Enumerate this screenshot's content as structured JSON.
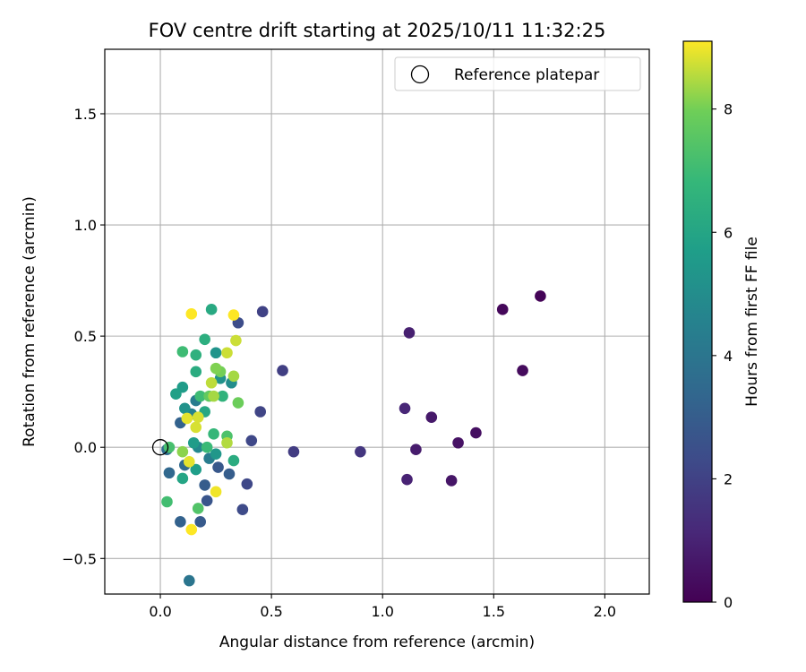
{
  "chart_data": {
    "type": "scatter",
    "title": "FOV centre drift starting at 2025/10/11 11:32:25",
    "xlabel": "Angular distance from reference (arcmin)",
    "ylabel": "Rotation from reference (arcmin)",
    "xlim": [
      -0.25,
      2.2
    ],
    "ylim": [
      -0.66,
      1.79
    ],
    "xticks": [
      0.0,
      0.5,
      1.0,
      1.5,
      2.0
    ],
    "xtick_labels": [
      "0.0",
      "0.5",
      "1.0",
      "1.5",
      "2.0"
    ],
    "yticks": [
      -0.5,
      0.0,
      0.5,
      1.0,
      1.5
    ],
    "ytick_labels": [
      "−0.5",
      "0.0",
      "0.5",
      "1.0",
      "1.5"
    ],
    "grid": true,
    "legend": {
      "position": "top-right",
      "entries": [
        {
          "label": "Reference platepar",
          "marker": "open-circle"
        }
      ]
    },
    "reference_point": {
      "x": 0.0,
      "y": 0.0
    },
    "colorbar": {
      "label": "Hours from first FF file",
      "colormap": "viridis",
      "range": [
        0,
        9.1
      ],
      "ticks": [
        0,
        2,
        4,
        6,
        8
      ],
      "tick_labels": [
        "0",
        "2",
        "4",
        "6",
        "8"
      ]
    },
    "series": [
      {
        "name": "FOV centre",
        "points": [
          {
            "x": 1.71,
            "y": 0.68,
            "h": 0.1
          },
          {
            "x": 1.54,
            "y": 0.62,
            "h": 0.2
          },
          {
            "x": 1.63,
            "y": 0.345,
            "h": 0.3
          },
          {
            "x": 1.42,
            "y": 0.065,
            "h": 0.4
          },
          {
            "x": 1.34,
            "y": 0.02,
            "h": 0.5
          },
          {
            "x": 1.31,
            "y": -0.15,
            "h": 0.6
          },
          {
            "x": 1.22,
            "y": 0.135,
            "h": 0.7
          },
          {
            "x": 1.15,
            "y": -0.01,
            "h": 0.8
          },
          {
            "x": 1.12,
            "y": 0.515,
            "h": 0.9
          },
          {
            "x": 1.11,
            "y": -0.145,
            "h": 1.0
          },
          {
            "x": 1.1,
            "y": 0.175,
            "h": 1.1
          },
          {
            "x": 0.9,
            "y": -0.02,
            "h": 1.6
          },
          {
            "x": 0.6,
            "y": -0.02,
            "h": 1.8
          },
          {
            "x": 0.55,
            "y": 0.345,
            "h": 1.9
          },
          {
            "x": 0.46,
            "y": 0.61,
            "h": 2.0
          },
          {
            "x": 0.45,
            "y": 0.16,
            "h": 2.1
          },
          {
            "x": 0.41,
            "y": 0.03,
            "h": 2.2
          },
          {
            "x": 0.39,
            "y": -0.165,
            "h": 2.2
          },
          {
            "x": 0.37,
            "y": -0.28,
            "h": 2.3
          },
          {
            "x": 0.35,
            "y": 0.56,
            "h": 2.4
          },
          {
            "x": 0.26,
            "y": -0.09,
            "h": 2.8
          },
          {
            "x": 0.31,
            "y": -0.12,
            "h": 3.0
          },
          {
            "x": 0.2,
            "y": -0.17,
            "h": 3.0
          },
          {
            "x": 0.18,
            "y": -0.335,
            "h": 2.9
          },
          {
            "x": 0.21,
            "y": -0.24,
            "h": 2.7
          },
          {
            "x": 0.09,
            "y": -0.335,
            "h": 3.2
          },
          {
            "x": 0.04,
            "y": -0.115,
            "h": 3.4
          },
          {
            "x": 0.03,
            "y": -0.01,
            "h": 3.6
          },
          {
            "x": 0.09,
            "y": 0.11,
            "h": 3.2
          },
          {
            "x": 0.11,
            "y": -0.08,
            "h": 3.5
          },
          {
            "x": 0.13,
            "y": -0.6,
            "h": 4.0
          },
          {
            "x": 0.22,
            "y": -0.05,
            "h": 4.3
          },
          {
            "x": 0.17,
            "y": 0.0,
            "h": 4.8
          },
          {
            "x": 0.14,
            "y": 0.15,
            "h": 4.5
          },
          {
            "x": 0.16,
            "y": 0.21,
            "h": 4.3
          },
          {
            "x": 0.32,
            "y": 0.29,
            "h": 5.0
          },
          {
            "x": 0.27,
            "y": 0.31,
            "h": 5.2
          },
          {
            "x": 0.25,
            "y": 0.425,
            "h": 5.3
          },
          {
            "x": 0.15,
            "y": 0.02,
            "h": 5.6
          },
          {
            "x": 0.25,
            "y": -0.03,
            "h": 5.4
          },
          {
            "x": 0.11,
            "y": 0.175,
            "h": 5.2
          },
          {
            "x": 0.1,
            "y": 0.27,
            "h": 5.6
          },
          {
            "x": 0.07,
            "y": 0.24,
            "h": 5.8
          },
          {
            "x": 0.1,
            "y": -0.14,
            "h": 6.0
          },
          {
            "x": 0.16,
            "y": -0.1,
            "h": 5.7
          },
          {
            "x": 0.2,
            "y": 0.16,
            "h": 6.1
          },
          {
            "x": 0.23,
            "y": 0.62,
            "h": 6.2
          },
          {
            "x": 0.2,
            "y": 0.485,
            "h": 6.4
          },
          {
            "x": 0.16,
            "y": 0.34,
            "h": 6.3
          },
          {
            "x": 0.16,
            "y": 0.415,
            "h": 6.5
          },
          {
            "x": 0.28,
            "y": 0.23,
            "h": 6.6
          },
          {
            "x": 0.33,
            "y": -0.06,
            "h": 6.3
          },
          {
            "x": 0.24,
            "y": 0.06,
            "h": 6.8
          },
          {
            "x": 0.21,
            "y": 0.0,
            "h": 6.9
          },
          {
            "x": 0.18,
            "y": 0.23,
            "h": 7.0
          },
          {
            "x": 0.1,
            "y": 0.43,
            "h": 7.0
          },
          {
            "x": 0.04,
            "y": 0.0,
            "h": 7.2
          },
          {
            "x": 0.03,
            "y": -0.245,
            "h": 7.1
          },
          {
            "x": 0.3,
            "y": 0.05,
            "h": 7.3
          },
          {
            "x": 0.17,
            "y": -0.275,
            "h": 7.4
          },
          {
            "x": 0.22,
            "y": 0.23,
            "h": 7.7
          },
          {
            "x": 0.35,
            "y": 0.2,
            "h": 7.9
          },
          {
            "x": 0.27,
            "y": 0.34,
            "h": 8.0
          },
          {
            "x": 0.25,
            "y": 0.355,
            "h": 8.1
          },
          {
            "x": 0.1,
            "y": -0.02,
            "h": 8.2
          },
          {
            "x": 0.24,
            "y": 0.23,
            "h": 8.4
          },
          {
            "x": 0.3,
            "y": 0.02,
            "h": 8.5
          },
          {
            "x": 0.33,
            "y": 0.32,
            "h": 8.4
          },
          {
            "x": 0.23,
            "y": 0.29,
            "h": 8.6
          },
          {
            "x": 0.34,
            "y": 0.48,
            "h": 8.7
          },
          {
            "x": 0.3,
            "y": 0.425,
            "h": 8.7
          },
          {
            "x": 0.16,
            "y": 0.09,
            "h": 8.8
          },
          {
            "x": 0.17,
            "y": 0.135,
            "h": 8.8
          },
          {
            "x": 0.12,
            "y": 0.13,
            "h": 8.9
          },
          {
            "x": 0.13,
            "y": -0.065,
            "h": 8.9
          },
          {
            "x": 0.25,
            "y": -0.2,
            "h": 9.0
          },
          {
            "x": 0.14,
            "y": -0.37,
            "h": 9.1
          },
          {
            "x": 0.33,
            "y": 0.595,
            "h": 9.1
          },
          {
            "x": 0.14,
            "y": 0.6,
            "h": 9.1
          }
        ]
      }
    ]
  }
}
